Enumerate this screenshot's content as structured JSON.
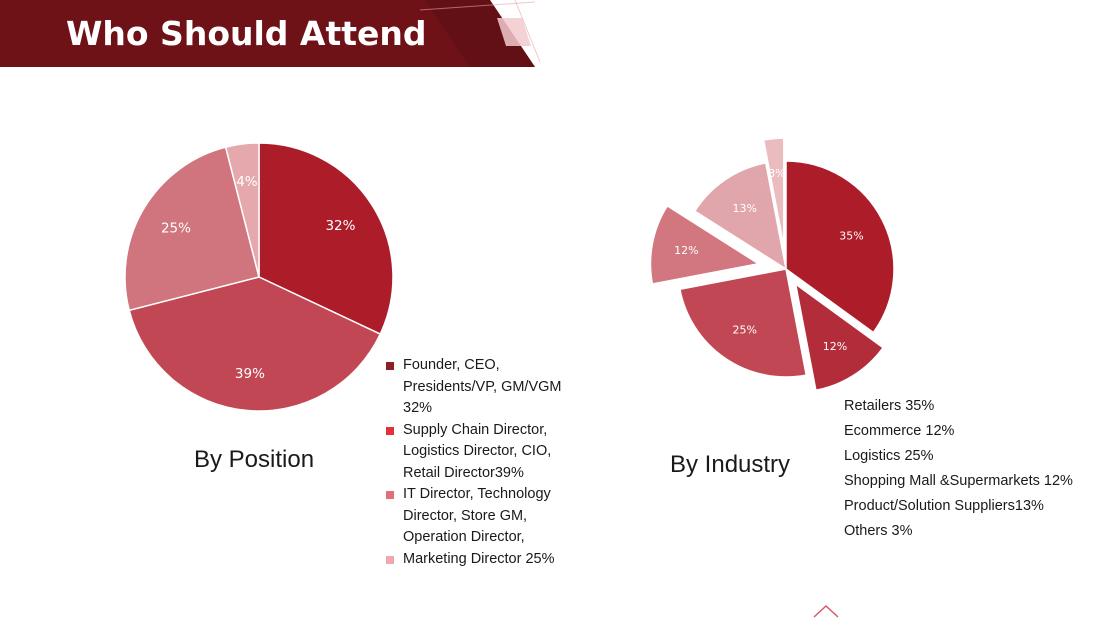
{
  "slide": {
    "title": "Who Should Attend"
  },
  "colors": {
    "banner": "#6e1218",
    "accent": "#d65a67"
  },
  "chart_data": [
    {
      "type": "pie",
      "title": "By Position",
      "slices": [
        {
          "value": 32,
          "label": "32%",
          "color": "#ad1c29",
          "legend": "Founder, CEO, Presidents/VP, GM/VGM 32%",
          "swatch": "#8f1d26"
        },
        {
          "value": 39,
          "label": "39%",
          "color": "#c24754",
          "legend": "Supply Chain Director, Logistics Director, CIO, Retail Director39%",
          "swatch": "#e2313e"
        },
        {
          "value": 25,
          "label": "25%",
          "color": "#d0747d",
          "legend": "IT Director, Technology Director, Store GM, Operation Director, Marketing Director 25%",
          "swatch": "#df6f78"
        },
        {
          "value": 4,
          "label": "4%",
          "color": "#e4a8ad",
          "legend": "",
          "swatch": "#eea9ae"
        }
      ]
    },
    {
      "type": "pie",
      "title": "By Industry",
      "slices": [
        {
          "value": 35,
          "label": "35%",
          "color": "#ad1c29",
          "name": "Retailers 35%"
        },
        {
          "value": 12,
          "label": "12%",
          "color": "#b22d39",
          "name": "Ecommerce 12%"
        },
        {
          "value": 25,
          "label": "25%",
          "color": "#c24754",
          "name": "Logistics 25%"
        },
        {
          "value": 12,
          "label": "12%",
          "color": "#d27780",
          "name": "Shopping Mall &Supermarkets 12%"
        },
        {
          "value": 13,
          "label": "13%",
          "color": "#e0a6ab",
          "name": "Product/Solution Suppliers13%"
        },
        {
          "value": 3,
          "label": "3%",
          "color": "#eabcbf",
          "name": "Others 3%"
        }
      ]
    }
  ]
}
